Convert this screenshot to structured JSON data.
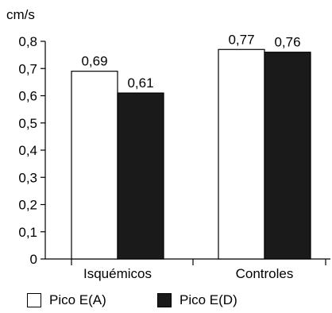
{
  "chart_data": {
    "type": "bar",
    "ylabel": "cm/s",
    "ylim": [
      0,
      0.8
    ],
    "yticks": [
      "0",
      "0,1",
      "0,2",
      "0,3",
      "0,4",
      "0,5",
      "0,6",
      "0,7",
      "0,8"
    ],
    "categories": [
      "Isquémicos",
      "Controles"
    ],
    "series": [
      {
        "name": "Pico E(A)",
        "values": [
          0.69,
          0.77
        ],
        "labels": [
          "0,69",
          "0,77"
        ],
        "color": "#ffffff"
      },
      {
        "name": "Pico E(D)",
        "values": [
          0.61,
          0.76
        ],
        "labels": [
          "0,61",
          "0,76"
        ],
        "color": "#1a1a1a"
      }
    ],
    "legend": "bottom",
    "grid": false
  }
}
